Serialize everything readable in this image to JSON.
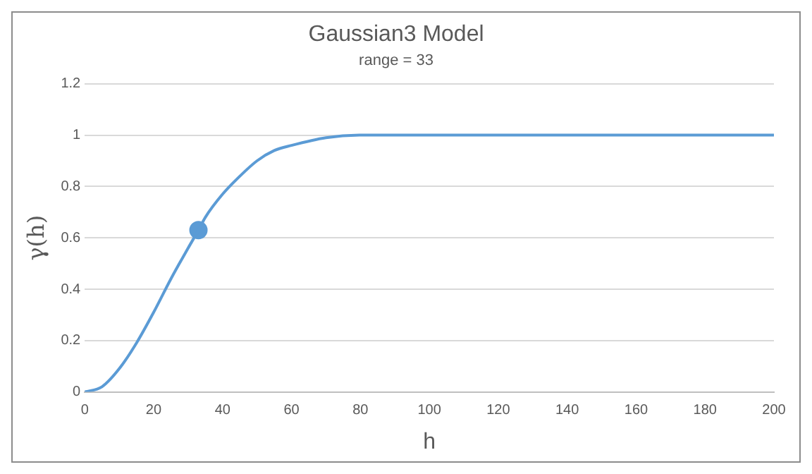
{
  "chart_data": {
    "type": "line",
    "title": "Gaussian3 Model",
    "subtitle": "range = 33",
    "xlabel": "h",
    "ylabel": "γ(h)",
    "xlim": [
      0,
      200
    ],
    "xticks": [
      0,
      20,
      40,
      60,
      80,
      100,
      120,
      140,
      160,
      180,
      200
    ],
    "ylim": [
      0,
      1.2
    ],
    "yticks": [
      0,
      0.2,
      0.4,
      0.6,
      0.8,
      1,
      1.2
    ],
    "grid": "y",
    "legend": false,
    "series": [
      {
        "color": "#5b9bd5",
        "marker": "none",
        "x": [
          0,
          5,
          10,
          15,
          20,
          25,
          30,
          33,
          35,
          40,
          45,
          50,
          55,
          60,
          70,
          80,
          90,
          100,
          120,
          140,
          160,
          180,
          200
        ],
        "values": [
          0,
          0.02,
          0.09,
          0.19,
          0.31,
          0.44,
          0.56,
          0.63,
          0.68,
          0.77,
          0.84,
          0.9,
          0.94,
          0.96,
          0.99,
          1,
          1,
          1,
          1,
          1,
          1,
          1,
          1
        ]
      },
      {
        "type": "scatter",
        "color": "#5b9bd5",
        "marker": "circle",
        "x": [
          33
        ],
        "values": [
          0.63
        ]
      }
    ]
  }
}
